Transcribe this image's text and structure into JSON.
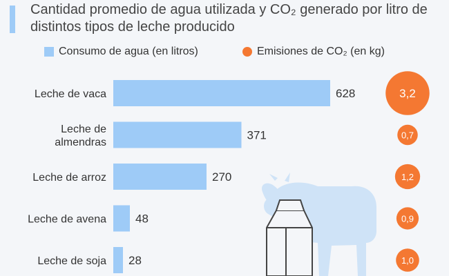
{
  "chart_data": {
    "type": "bar",
    "title": "Cantidad promedio de agua utilizada y CO₂ generado por litro de distintos tipos de leche producido",
    "categories": [
      "Leche de vaca",
      "Leche de almendras",
      "Leche de arroz",
      "Leche de avena",
      "Leche de soja"
    ],
    "category_lines": [
      [
        "Leche de vaca"
      ],
      [
        "Leche de",
        "almendras"
      ],
      [
        "Leche de arroz"
      ],
      [
        "Leche de avena"
      ],
      [
        "Leche de soja"
      ]
    ],
    "series": [
      {
        "name": "Consumo de agua (en litros)",
        "kind": "bar",
        "color": "#9ecbf7",
        "values": [
          628,
          371,
          270,
          48,
          28
        ],
        "labels": [
          "628",
          "371",
          "270",
          "48",
          "28"
        ]
      },
      {
        "name": "Emisiones de CO₂ (en kg)",
        "kind": "bubble",
        "color": "#f47832",
        "values": [
          3.2,
          0.7,
          1.2,
          0.9,
          1.0
        ],
        "labels": [
          "3,2",
          "0,7",
          "1,2",
          "0,9",
          "1,0"
        ]
      }
    ],
    "xlim": [
      0,
      650
    ],
    "legend_position": "top",
    "grid": false
  },
  "decoration": {
    "illustration": "cow-and-milk-carton",
    "color": "#cfe3f7"
  }
}
